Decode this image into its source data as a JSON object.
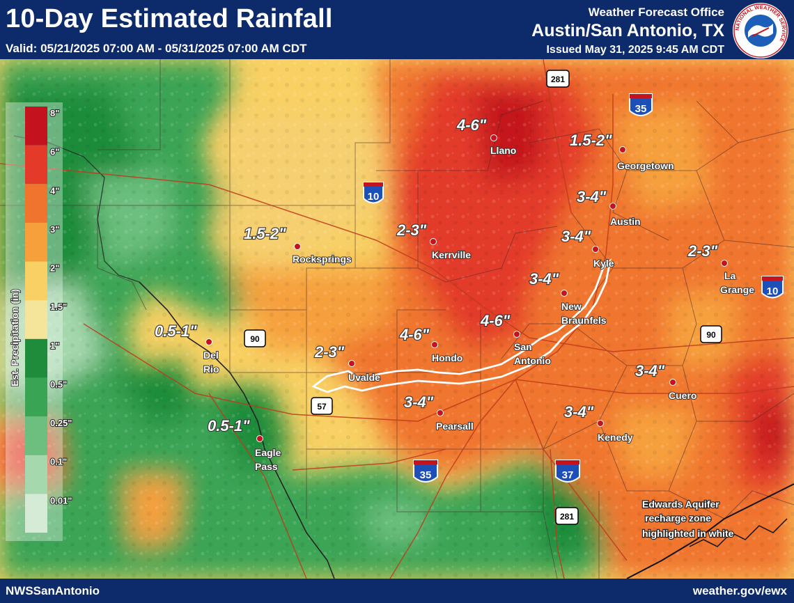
{
  "header": {
    "title": "10-Day Estimated Rainfall",
    "valid": "Valid: 05/21/2025 07:00 AM - 05/31/2025 07:00 AM CDT",
    "office": "Weather Forecast Office",
    "office_city": "Austin/San Antonio, TX",
    "issued": "Issued May 31, 2025 9:45 AM CDT",
    "logo_text": "NATIONAL WEATHER SERVICE"
  },
  "legend": {
    "title": "Est. Precipitation (in)",
    "levels": [
      {
        "label": "8\"",
        "color": "#c4121f"
      },
      {
        "label": "6\"",
        "color": "#e33a2a"
      },
      {
        "label": "4\"",
        "color": "#f0742e"
      },
      {
        "label": "3\"",
        "color": "#f6a03c"
      },
      {
        "label": "2\"",
        "color": "#f8d063"
      },
      {
        "label": "1.5\"",
        "color": "#f5e59a"
      },
      {
        "label": "1\"",
        "color": "#1e8c3a"
      },
      {
        "label": "0.5\"",
        "color": "#3aa455"
      },
      {
        "label": "0.25\"",
        "color": "#6cbf7e"
      },
      {
        "label": "0.1\"",
        "color": "#a6d8ae"
      },
      {
        "label": "0.01\"",
        "color": "#d6ebd6"
      }
    ]
  },
  "amount_labels": [
    {
      "text": "4-6\""
    },
    {
      "text": "1.5-2\""
    },
    {
      "text": "3-4\""
    },
    {
      "text": "1.5-2\""
    },
    {
      "text": "2-3\""
    },
    {
      "text": "3-4\""
    },
    {
      "text": "2-3\""
    },
    {
      "text": "3-4\""
    },
    {
      "text": "0.5-1\""
    },
    {
      "text": "4-6\""
    },
    {
      "text": "4-6\""
    },
    {
      "text": "2-3\""
    },
    {
      "text": "3-4\""
    },
    {
      "text": "3-4\""
    },
    {
      "text": "3-4\""
    },
    {
      "text": "0.5-1\""
    }
  ],
  "cities": [
    {
      "name": "Llano"
    },
    {
      "name": "Georgetown"
    },
    {
      "name": "Austin"
    },
    {
      "name": "Rocksprings"
    },
    {
      "name": "Kerrville"
    },
    {
      "name": "Kyle"
    },
    {
      "name": "La"
    },
    {
      "name": "Grange"
    },
    {
      "name": "New"
    },
    {
      "name": "Braunfels"
    },
    {
      "name": "Del"
    },
    {
      "name": "Rio"
    },
    {
      "name": "Uvalde"
    },
    {
      "name": "Hondo"
    },
    {
      "name": "San"
    },
    {
      "name": "Antonio"
    },
    {
      "name": "Cuero"
    },
    {
      "name": "Pearsall"
    },
    {
      "name": "Kenedy"
    },
    {
      "name": "Eagle"
    },
    {
      "name": "Pass"
    }
  ],
  "highways": {
    "i10_a": "10",
    "i10_b": "10",
    "i35_a": "35",
    "i35_b": "35",
    "i37": "37",
    "us281_a": "281",
    "us281_b": "281",
    "us90_a": "90",
    "us90_b": "90",
    "us57": "57"
  },
  "note": {
    "line1": "Edwards Aquifer",
    "line2": "recharge zone",
    "line3": "highlighted in white"
  },
  "footer": {
    "left": "NWSSanAntonio",
    "right": "weather.gov/ewx"
  }
}
